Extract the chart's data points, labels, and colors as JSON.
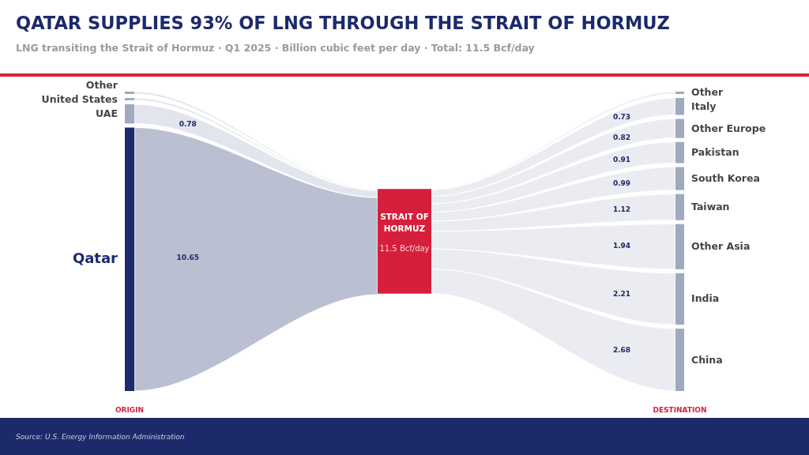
{
  "chart_data": {
    "type": "other",
    "title": "QATAR SUPPLIES 93% OF LNG THROUGH THE STRAIT OF HORMUZ",
    "subtitle": "LNG transiting the Strait of Hormuz · Q1 2025 · Billion cubic feet per day · Total: 11.5 Bcf/day",
    "categories": [
      "Other",
      "United States",
      "UAE",
      "Qatar",
      "STRAIT OF HORMUZ",
      "Other",
      "Italy",
      "Other Europe",
      "Pakistan",
      "South Korea",
      "Taiwan",
      "Other Asia",
      "India",
      "China"
    ],
    "series": [
      {
        "name": "ORIGIN",
        "colors": [
          "#a0aabf",
          "#a0aabf",
          "#a0aabf",
          "#1c2a6b",
          null,
          null,
          null,
          null,
          null,
          null,
          null,
          null,
          null,
          null
        ],
        "values": [
          null,
          null,
          0.78,
          10.65,
          null,
          null,
          null,
          null,
          null,
          null,
          null,
          null,
          null,
          null
        ],
        "value_labels": [
          null,
          null,
          "0.78",
          "10.65",
          null,
          null,
          null,
          null,
          null,
          null,
          null,
          null,
          null,
          null
        ]
      },
      {
        "color": "#d61f3c",
        "values": [
          null,
          null,
          null,
          null,
          11.5,
          null,
          null,
          null,
          null,
          null,
          null,
          null,
          null,
          null
        ],
        "value_labels": [
          null,
          null,
          null,
          null,
          "11.5 Bcf/day",
          null,
          null,
          null,
          null,
          null,
          null,
          null,
          null,
          null
        ]
      },
      {
        "name": "DESTINATION",
        "color": "#a0aabf",
        "values": [
          null,
          null,
          null,
          null,
          null,
          null,
          0.73,
          0.82,
          0.91,
          0.99,
          1.12,
          1.94,
          2.21,
          2.68
        ],
        "value_labels": [
          null,
          null,
          null,
          null,
          null,
          null,
          "0.73",
          "0.82",
          "0.91",
          "0.99",
          "1.12",
          "1.94",
          "2.21",
          "2.68"
        ]
      }
    ],
    "annotations": [
      "Source: U.S. Energy Information Administration"
    ]
  }
}
